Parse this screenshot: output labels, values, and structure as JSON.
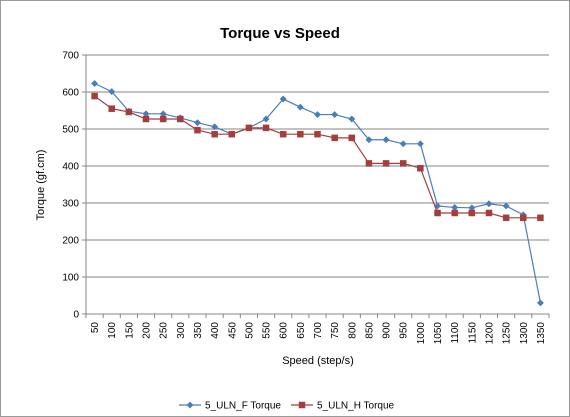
{
  "chart_data": {
    "type": "line",
    "title": "Torque vs Speed",
    "xlabel": "Speed (step/s)",
    "ylabel": "Torque (gf.cm)",
    "ylim": [
      0,
      700
    ],
    "ytick_step": 100,
    "grid": true,
    "legend_position": "bottom",
    "categories": [
      "50",
      "100",
      "150",
      "200",
      "250",
      "300",
      "350",
      "400",
      "450",
      "500",
      "550",
      "600",
      "650",
      "700",
      "750",
      "800",
      "850",
      "900",
      "950",
      "1000",
      "1050",
      "1100",
      "1150",
      "1200",
      "1250",
      "1300",
      "1350"
    ],
    "series": [
      {
        "name": "5_ULN_F Torque",
        "color": "#4a7ebb",
        "marker": "diamond",
        "values": [
          623,
          601,
          548,
          541,
          541,
          530,
          517,
          506,
          486,
          503,
          527,
          581,
          559,
          539,
          539,
          527,
          471,
          471,
          460,
          460,
          292,
          288,
          287,
          298,
          292,
          268,
          30
        ]
      },
      {
        "name": "5_ULN_H Torque",
        "color": "#a33e3e",
        "marker": "square",
        "values": [
          589,
          555,
          546,
          527,
          527,
          527,
          497,
          486,
          486,
          503,
          503,
          486,
          486,
          486,
          476,
          476,
          407,
          407,
          407,
          394,
          273,
          273,
          273,
          273,
          260,
          260,
          260
        ]
      }
    ]
  }
}
